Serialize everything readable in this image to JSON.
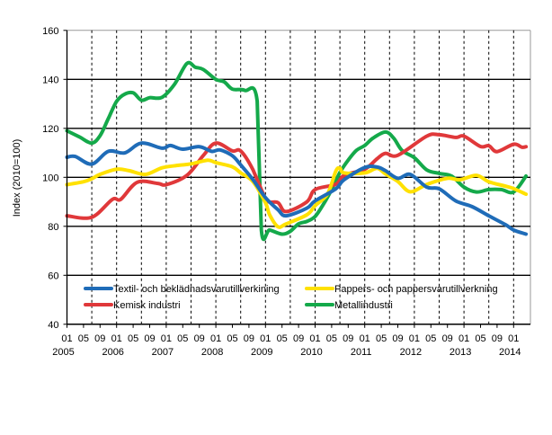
{
  "chart_data": {
    "type": "line",
    "title": "",
    "xlabel": "",
    "ylabel": "Index (2010=100)",
    "ylim": [
      40,
      160
    ],
    "yticks": [
      40,
      60,
      80,
      100,
      120,
      140,
      160
    ],
    "xlim": [
      "2005-01",
      "2014-04"
    ],
    "x_month_labels": [
      "01",
      "05",
      "09"
    ],
    "x_year_labels": [
      "2005",
      "2006",
      "2007",
      "2008",
      "2009",
      "2010",
      "2011",
      "2012",
      "2013",
      "2014"
    ],
    "grid": "horizontal solid, vertical dashed every 6 months",
    "legend_position": "bottom-inside",
    "series": [
      {
        "name": "Textil- och beklädnadsvarutillverkining",
        "color": "#1f6cb8",
        "points": [
          [
            "2005-01",
            108.2
          ],
          [
            "2005-03",
            108.5
          ],
          [
            "2005-07",
            105.4
          ],
          [
            "2005-11",
            110.6
          ],
          [
            "2006-03",
            110
          ],
          [
            "2006-07",
            114
          ],
          [
            "2006-12",
            111.9
          ],
          [
            "2007-02",
            113
          ],
          [
            "2007-05",
            111.5
          ],
          [
            "2007-09",
            112.5
          ],
          [
            "2007-12",
            110.6
          ],
          [
            "2008-02",
            111.2
          ],
          [
            "2008-05",
            108.8
          ],
          [
            "2008-07",
            105.1
          ],
          [
            "2008-10",
            99
          ],
          [
            "2009-01",
            91.7
          ],
          [
            "2009-04",
            86.8
          ],
          [
            "2009-06",
            84.3
          ],
          [
            "2009-11",
            87.4
          ],
          [
            "2010-01",
            90.4
          ],
          [
            "2010-06",
            95.3
          ],
          [
            "2010-08",
            99
          ],
          [
            "2011-01",
            104
          ],
          [
            "2011-04",
            104.2
          ],
          [
            "2011-06",
            102.7
          ],
          [
            "2011-09",
            99.6
          ],
          [
            "2011-12",
            101.2
          ],
          [
            "2012-04",
            96
          ],
          [
            "2012-07",
            95.3
          ],
          [
            "2012-11",
            90.4
          ],
          [
            "2013-03",
            88
          ],
          [
            "2013-07",
            84.3
          ],
          [
            "2013-11",
            80.7
          ],
          [
            "2014-01",
            78.5
          ],
          [
            "2014-04",
            76.8
          ]
        ]
      },
      {
        "name": "Pappers- och pappersvarutillverkning",
        "color": "#ffe100",
        "points": [
          [
            "2005-01",
            97
          ],
          [
            "2005-05",
            98.2
          ],
          [
            "2005-07",
            99.4
          ],
          [
            "2005-09",
            101.2
          ],
          [
            "2006-01",
            103.3
          ],
          [
            "2006-04",
            102.7
          ],
          [
            "2006-08",
            101.2
          ],
          [
            "2006-12",
            103.9
          ],
          [
            "2007-04",
            104.9
          ],
          [
            "2007-07",
            105.5
          ],
          [
            "2007-11",
            107
          ],
          [
            "2008-01",
            106
          ],
          [
            "2008-05",
            104.3
          ],
          [
            "2008-07",
            101.8
          ],
          [
            "2008-10",
            98.2
          ],
          [
            "2009-01",
            89.6
          ],
          [
            "2009-02",
            84.7
          ],
          [
            "2009-04",
            79.8
          ],
          [
            "2009-06",
            81
          ],
          [
            "2009-11",
            84.7
          ],
          [
            "2010-01",
            88.4
          ],
          [
            "2010-04",
            93.2
          ],
          [
            "2010-06",
            102.5
          ],
          [
            "2010-07",
            103.7
          ],
          [
            "2010-08",
            101.8
          ],
          [
            "2011-01",
            101.8
          ],
          [
            "2011-04",
            103.7
          ],
          [
            "2011-06",
            101.4
          ],
          [
            "2011-09",
            98.3
          ],
          [
            "2011-12",
            94.1
          ],
          [
            "2012-04",
            97.1
          ],
          [
            "2012-09",
            99.6
          ],
          [
            "2012-12",
            99
          ],
          [
            "2013-04",
            100.8
          ],
          [
            "2013-07",
            98.2
          ],
          [
            "2013-11",
            96.4
          ],
          [
            "2014-01",
            95.4
          ],
          [
            "2014-04",
            93.1
          ]
        ]
      },
      {
        "name": "Kemisk industri",
        "color": "#e0383a",
        "points": [
          [
            "2005-01",
            84.3
          ],
          [
            "2005-07",
            83.7
          ],
          [
            "2005-12",
            91
          ],
          [
            "2006-02",
            91
          ],
          [
            "2006-06",
            98
          ],
          [
            "2006-11",
            97.5
          ],
          [
            "2007-01",
            97
          ],
          [
            "2007-06",
            100.8
          ],
          [
            "2007-10",
            109
          ],
          [
            "2008-01",
            114
          ],
          [
            "2008-05",
            110.8
          ],
          [
            "2008-07",
            110.8
          ],
          [
            "2008-10",
            103
          ],
          [
            "2009-01",
            91
          ],
          [
            "2009-04",
            89.7
          ],
          [
            "2009-06",
            86
          ],
          [
            "2009-11",
            90
          ],
          [
            "2010-01",
            95
          ],
          [
            "2010-06",
            97.2
          ],
          [
            "2010-08",
            100.8
          ],
          [
            "2011-01",
            103.3
          ],
          [
            "2011-04",
            107.6
          ],
          [
            "2011-06",
            109.8
          ],
          [
            "2011-09",
            109
          ],
          [
            "2012-04",
            116.8
          ],
          [
            "2012-07",
            117.4
          ],
          [
            "2012-11",
            116.3
          ],
          [
            "2013-01",
            116.8
          ],
          [
            "2013-05",
            112.6
          ],
          [
            "2013-07",
            112.9
          ],
          [
            "2013-09",
            110.5
          ],
          [
            "2014-01",
            113.5
          ],
          [
            "2014-03",
            112.3
          ],
          [
            "2014-04",
            112.5
          ]
        ]
      },
      {
        "name": "Metallindustri",
        "color": "#14a94a",
        "points": [
          [
            "2005-01",
            119
          ],
          [
            "2005-04",
            116.5
          ],
          [
            "2005-07",
            114
          ],
          [
            "2005-09",
            117
          ],
          [
            "2005-11",
            124
          ],
          [
            "2006-01",
            131
          ],
          [
            "2006-03",
            134
          ],
          [
            "2006-05",
            134.5
          ],
          [
            "2006-07",
            131.5
          ],
          [
            "2006-09",
            132.5
          ],
          [
            "2006-12",
            132.7
          ],
          [
            "2007-03",
            138
          ],
          [
            "2007-06",
            146.5
          ],
          [
            "2007-08",
            145
          ],
          [
            "2007-10",
            144
          ],
          [
            "2008-01",
            140
          ],
          [
            "2008-03",
            139
          ],
          [
            "2008-05",
            136
          ],
          [
            "2008-08",
            135.5
          ],
          [
            "2008-11",
            131
          ],
          [
            "2008-12",
            78.5
          ],
          [
            "2009-02",
            78.5
          ],
          [
            "2009-05",
            76.8
          ],
          [
            "2009-07",
            78
          ],
          [
            "2009-09",
            81
          ],
          [
            "2009-11",
            82
          ],
          [
            "2010-01",
            84
          ],
          [
            "2010-03",
            89
          ],
          [
            "2010-05",
            95
          ],
          [
            "2010-07",
            102
          ],
          [
            "2010-09",
            107
          ],
          [
            "2010-11",
            111
          ],
          [
            "2011-01",
            113
          ],
          [
            "2011-03",
            116
          ],
          [
            "2011-06",
            118.5
          ],
          [
            "2011-08",
            116
          ],
          [
            "2011-10",
            111
          ],
          [
            "2012-01",
            108
          ],
          [
            "2012-04",
            103
          ],
          [
            "2012-07",
            101.6
          ],
          [
            "2012-10",
            100.5
          ],
          [
            "2013-01",
            96
          ],
          [
            "2013-04",
            94
          ],
          [
            "2013-07",
            95
          ],
          [
            "2013-10",
            95
          ],
          [
            "2014-01",
            94
          ],
          [
            "2014-04",
            100.5
          ]
        ]
      }
    ]
  }
}
